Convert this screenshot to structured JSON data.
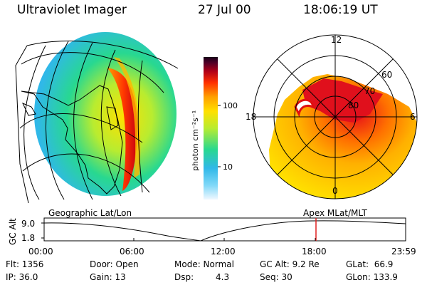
{
  "header": {
    "title": "Ultraviolet Imager",
    "date": "27 Jul 00",
    "time": "18:06:19 UT"
  },
  "colorbar": {
    "unit_label": "photon cm⁻²s⁻¹",
    "ticks": [
      "100",
      "10"
    ]
  },
  "polar": {
    "mlt_labels": [
      "12",
      "18",
      "6",
      "0"
    ],
    "mlat_labels": [
      "60",
      "70",
      "80"
    ]
  },
  "projection_labels": {
    "left": "Geographic Lat/Lon",
    "right": "Apex MLat/MLT"
  },
  "altitude_plot": {
    "ylabel": "GC Alt",
    "y_ticks": [
      "9.0",
      "1.8"
    ],
    "x_ticks": [
      "00:00",
      "06:00",
      "12:00",
      "18:00",
      "23:59"
    ]
  },
  "info": {
    "flt": "Flt: 1356",
    "ip": "IP: 36.0",
    "door": "Door: Open",
    "gain": "Gain: 13",
    "mode": "Mode: Normal",
    "dsp_label": "Dsp:",
    "dsp_value": "4.3",
    "gcalt": "GC Alt: 9.2 Re",
    "seq": "Seq: 30",
    "glat": "GLat:  66.9",
    "glon": "GLon: 133.9"
  }
}
